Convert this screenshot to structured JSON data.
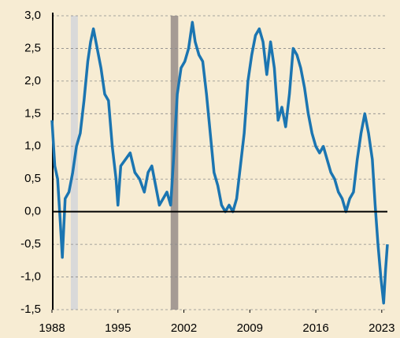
{
  "chart_data": {
    "type": "line",
    "x": [
      1988.0,
      1988.3,
      1988.6,
      1988.9,
      1989.1,
      1989.4,
      1989.8,
      1990.2,
      1990.6,
      1991.0,
      1991.4,
      1991.8,
      1992.1,
      1992.4,
      1992.8,
      1993.2,
      1993.6,
      1994.0,
      1994.4,
      1994.8,
      1995.0,
      1995.3,
      1995.8,
      1996.3,
      1996.8,
      1997.3,
      1997.8,
      1998.2,
      1998.6,
      1999.0,
      1999.4,
      1999.8,
      2000.2,
      2000.6,
      2000.9,
      2001.3,
      2001.7,
      2002.1,
      2002.5,
      2002.9,
      2003.2,
      2003.6,
      2004.0,
      2004.4,
      2004.8,
      2005.2,
      2005.6,
      2006.0,
      2006.4,
      2006.8,
      2007.2,
      2007.6,
      2008.0,
      2008.4,
      2008.8,
      2009.2,
      2009.6,
      2010.0,
      2010.4,
      2010.8,
      2011.2,
      2011.6,
      2012.0,
      2012.4,
      2012.8,
      2013.2,
      2013.6,
      2014.0,
      2014.4,
      2014.8,
      2015.2,
      2015.6,
      2016.0,
      2016.4,
      2016.8,
      2017.2,
      2017.6,
      2018.0,
      2018.4,
      2018.8,
      2019.2,
      2019.6,
      2020.0,
      2020.4,
      2020.8,
      2021.2,
      2021.6,
      2022.0,
      2022.3,
      2022.6,
      2022.9,
      2023.2,
      2023.4,
      2023.6
    ],
    "series": [
      {
        "color": "#1b75b1",
        "values": [
          1.4,
          0.7,
          0.5,
          -0.2,
          -0.7,
          0.2,
          0.3,
          0.6,
          1.0,
          1.2,
          1.7,
          2.3,
          2.6,
          2.8,
          2.5,
          2.2,
          1.8,
          1.7,
          1.0,
          0.5,
          0.1,
          0.7,
          0.8,
          0.9,
          0.6,
          0.5,
          0.3,
          0.6,
          0.7,
          0.4,
          0.1,
          0.2,
          0.3,
          0.1,
          0.8,
          1.8,
          2.2,
          2.3,
          2.5,
          2.9,
          2.6,
          2.4,
          2.3,
          1.8,
          1.2,
          0.6,
          0.4,
          0.1,
          0.0,
          0.1,
          0.0,
          0.2,
          0.7,
          1.2,
          2.0,
          2.4,
          2.7,
          2.8,
          2.6,
          2.1,
          2.6,
          2.2,
          1.4,
          1.6,
          1.3,
          1.8,
          2.5,
          2.4,
          2.2,
          1.9,
          1.5,
          1.2,
          1.0,
          0.9,
          1.0,
          0.8,
          0.6,
          0.5,
          0.3,
          0.2,
          0.0,
          0.2,
          0.3,
          0.8,
          1.2,
          1.5,
          1.2,
          0.8,
          0.1,
          -0.5,
          -1.0,
          -1.4,
          -0.9,
          -0.5
        ]
      }
    ],
    "shaded_periods": [
      {
        "start": 1990.0,
        "end": 1990.75,
        "color": "#d9d9d9"
      },
      {
        "start": 2000.6,
        "end": 2001.4,
        "color": "#a59b94"
      }
    ],
    "xlim": [
      1988,
      2023.6
    ],
    "xticks": [
      1988,
      1995,
      2002,
      2009,
      2016,
      2023
    ],
    "ylim": [
      -1.5,
      3
    ],
    "yticks": [
      {
        "value": -1.5,
        "label": "-1,5"
      },
      {
        "value": -1,
        "label": "-1,0"
      },
      {
        "value": -0.5,
        "label": "-0,5"
      },
      {
        "value": 0,
        "label": "0,0"
      },
      {
        "value": 0.5,
        "label": "0,5"
      },
      {
        "value": 1,
        "label": "1,0"
      },
      {
        "value": 1.5,
        "label": "1,5"
      },
      {
        "value": 2,
        "label": "2,0"
      },
      {
        "value": 2.5,
        "label": "2,5"
      },
      {
        "value": 3,
        "label": "3,0"
      }
    ],
    "grid": true
  }
}
